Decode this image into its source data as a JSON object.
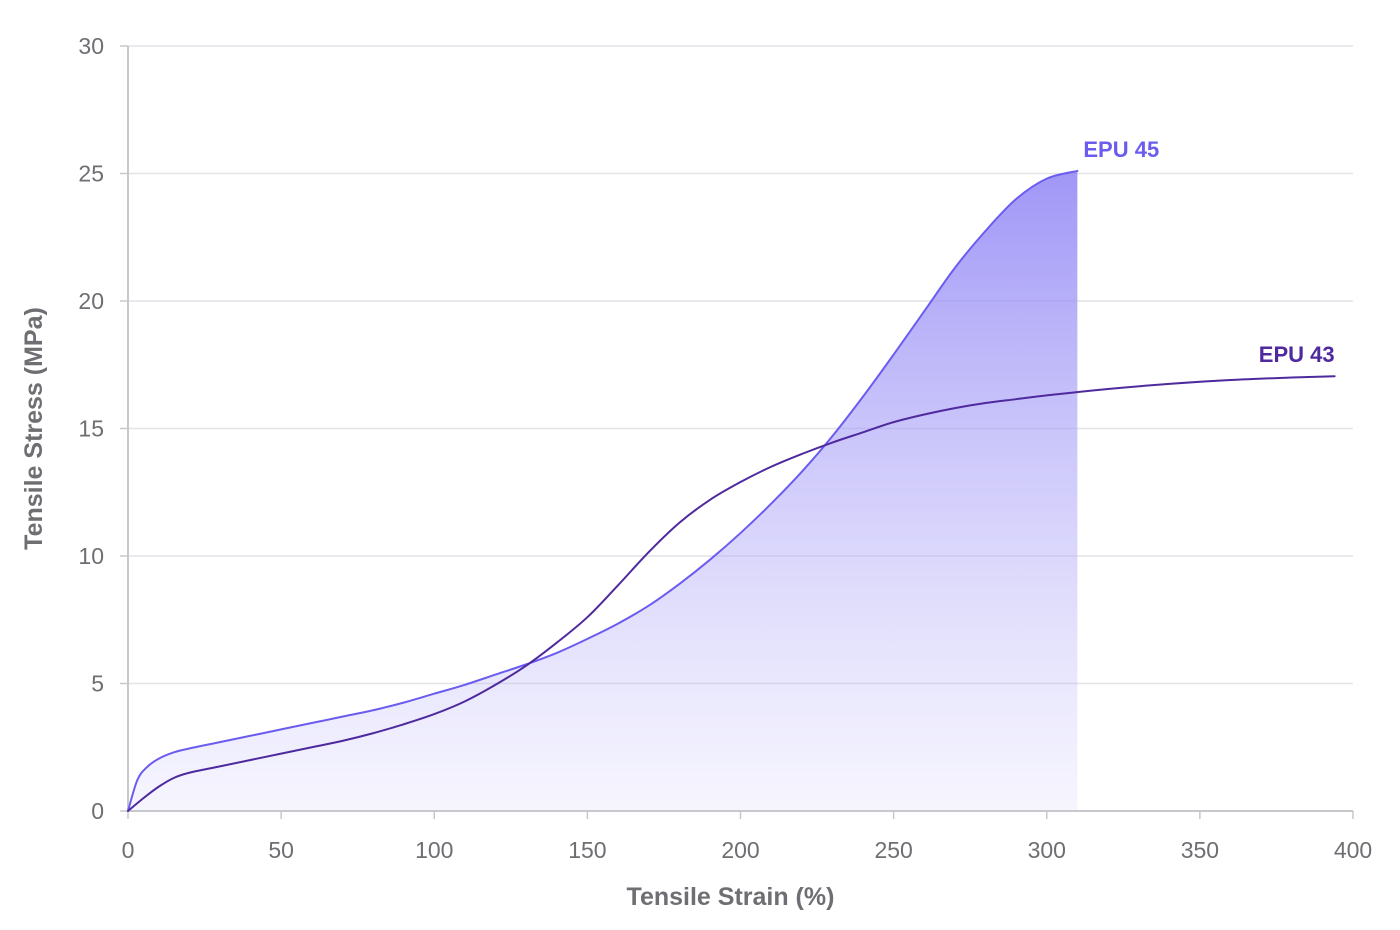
{
  "chart_data": {
    "type": "line",
    "xlabel": "Tensile Strain (%)",
    "ylabel": "Tensile Stress (MPa)",
    "xlim": [
      0,
      400
    ],
    "ylim": [
      0,
      30
    ],
    "x_ticks": [
      "0",
      "50",
      "100",
      "150",
      "200",
      "250",
      "300",
      "350",
      "400"
    ],
    "y_ticks": [
      "0",
      "5",
      "10",
      "15",
      "20",
      "25",
      "30"
    ],
    "grid": "horizontal",
    "series": [
      {
        "name": "EPU 45",
        "color": "#6b5cf0",
        "filled": true,
        "points": [
          [
            0,
            0
          ],
          [
            3,
            1.2
          ],
          [
            6,
            1.7
          ],
          [
            10,
            2.05
          ],
          [
            15,
            2.3
          ],
          [
            20,
            2.45
          ],
          [
            30,
            2.7
          ],
          [
            40,
            2.95
          ],
          [
            50,
            3.2
          ],
          [
            60,
            3.45
          ],
          [
            70,
            3.7
          ],
          [
            80,
            3.95
          ],
          [
            90,
            4.25
          ],
          [
            100,
            4.6
          ],
          [
            110,
            4.95
          ],
          [
            120,
            5.35
          ],
          [
            130,
            5.75
          ],
          [
            140,
            6.2
          ],
          [
            150,
            6.75
          ],
          [
            160,
            7.35
          ],
          [
            170,
            8.05
          ],
          [
            180,
            8.9
          ],
          [
            190,
            9.85
          ],
          [
            200,
            10.9
          ],
          [
            210,
            12.05
          ],
          [
            220,
            13.3
          ],
          [
            230,
            14.7
          ],
          [
            240,
            16.25
          ],
          [
            250,
            17.9
          ],
          [
            260,
            19.6
          ],
          [
            270,
            21.3
          ],
          [
            280,
            22.75
          ],
          [
            290,
            24.0
          ],
          [
            300,
            24.8
          ],
          [
            310,
            25.1
          ]
        ]
      },
      {
        "name": "EPU 43",
        "color": "#4e2a9e",
        "filled": false,
        "points": [
          [
            0,
            0
          ],
          [
            5,
            0.5
          ],
          [
            10,
            0.95
          ],
          [
            15,
            1.3
          ],
          [
            20,
            1.5
          ],
          [
            30,
            1.75
          ],
          [
            40,
            2.0
          ],
          [
            50,
            2.25
          ],
          [
            60,
            2.5
          ],
          [
            70,
            2.75
          ],
          [
            80,
            3.05
          ],
          [
            90,
            3.4
          ],
          [
            100,
            3.8
          ],
          [
            110,
            4.3
          ],
          [
            120,
            4.95
          ],
          [
            130,
            5.7
          ],
          [
            140,
            6.6
          ],
          [
            150,
            7.6
          ],
          [
            160,
            8.85
          ],
          [
            170,
            10.15
          ],
          [
            180,
            11.3
          ],
          [
            190,
            12.2
          ],
          [
            200,
            12.9
          ],
          [
            210,
            13.5
          ],
          [
            220,
            14.0
          ],
          [
            230,
            14.45
          ],
          [
            240,
            14.85
          ],
          [
            250,
            15.25
          ],
          [
            260,
            15.55
          ],
          [
            270,
            15.8
          ],
          [
            280,
            16.0
          ],
          [
            290,
            16.15
          ],
          [
            300,
            16.3
          ],
          [
            320,
            16.55
          ],
          [
            340,
            16.75
          ],
          [
            360,
            16.9
          ],
          [
            380,
            17.0
          ],
          [
            394,
            17.05
          ]
        ]
      }
    ]
  }
}
